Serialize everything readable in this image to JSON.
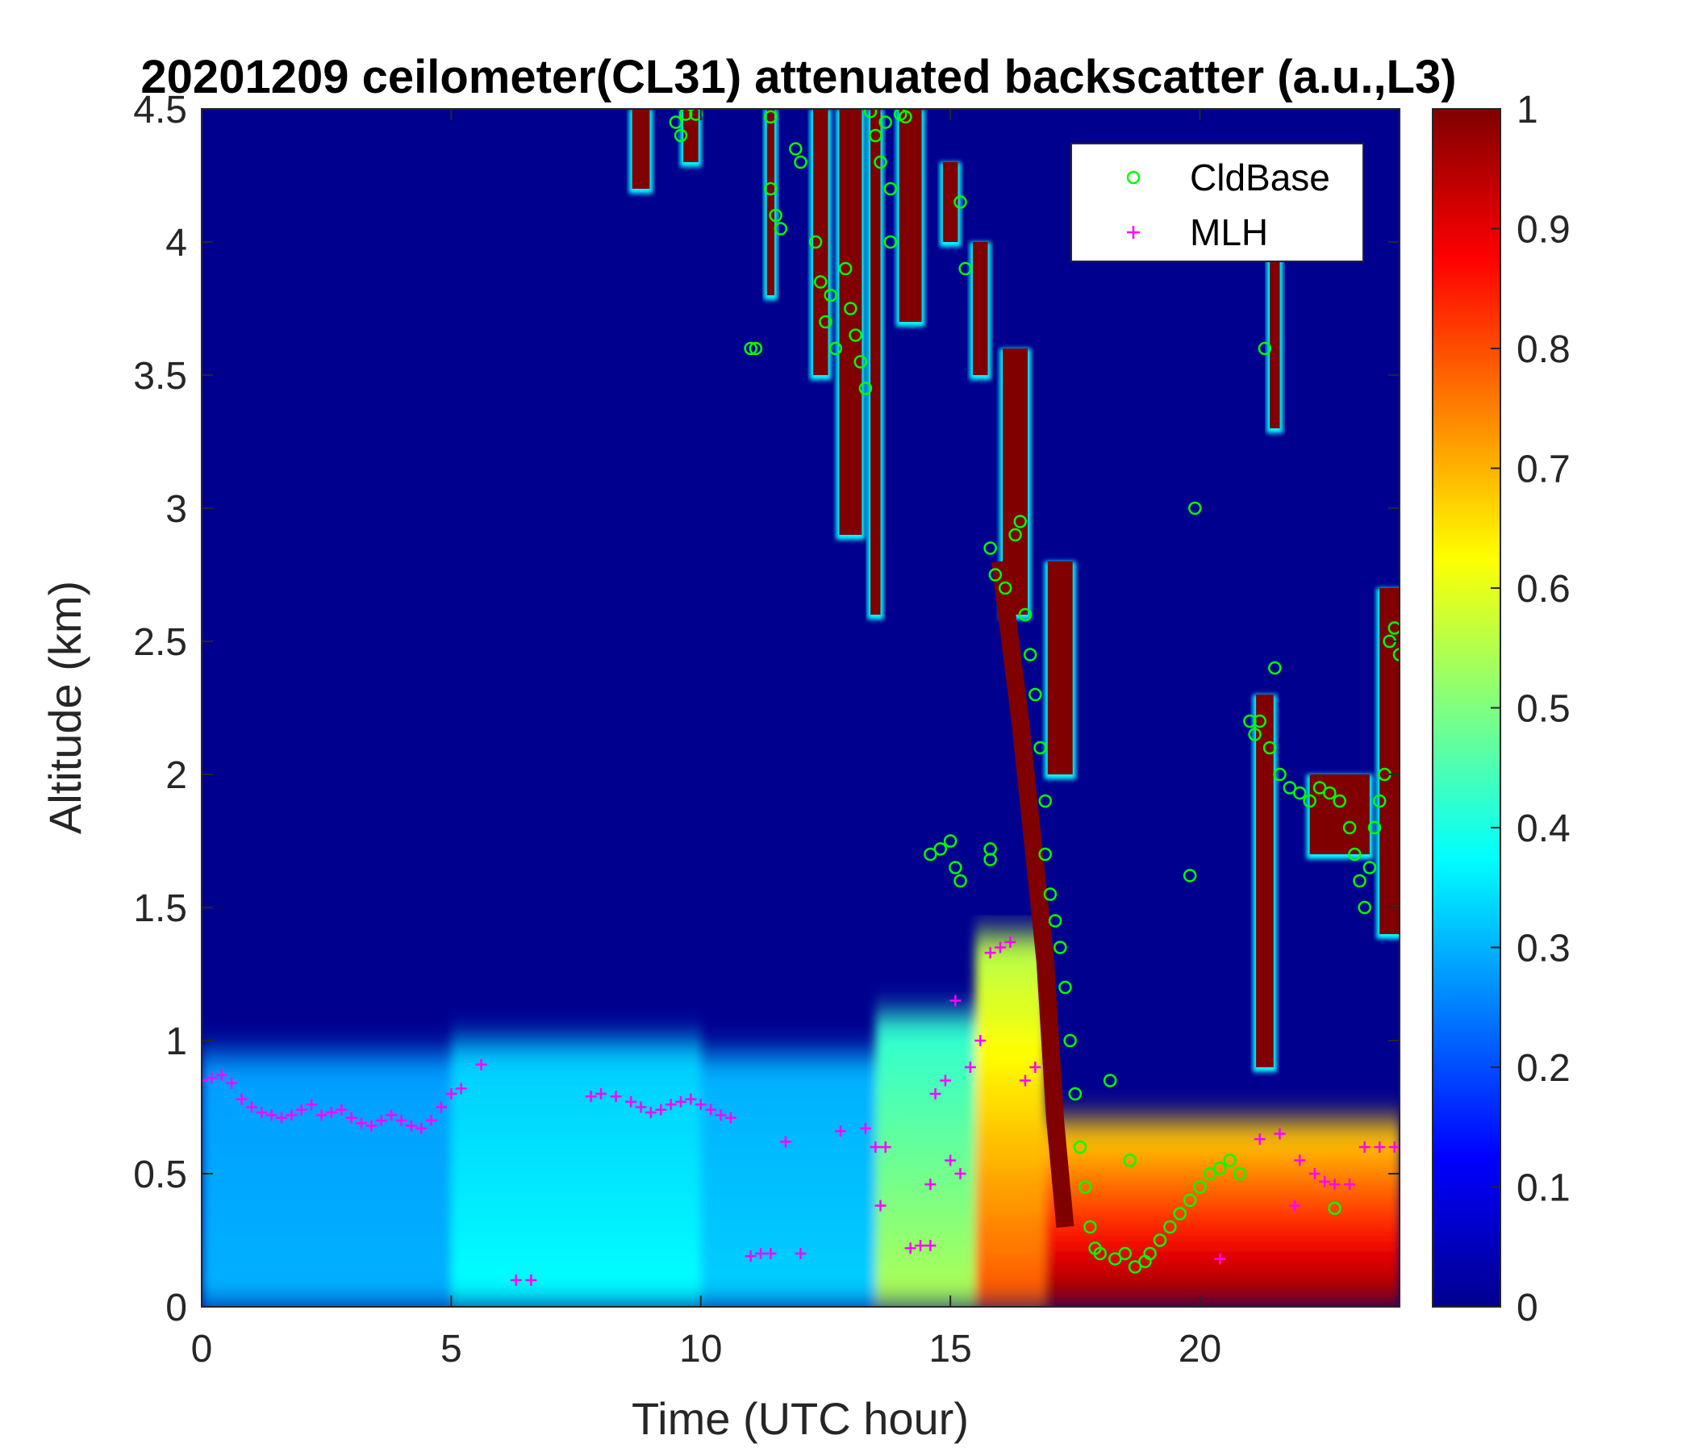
{
  "chart_data": {
    "type": "heatmap",
    "title": "20201209 ceilometer(CL31) attenuated backscatter (a.u.,L3)",
    "xlabel": "Time (UTC hour)",
    "ylabel": "Altitude (km)",
    "xlim": [
      0,
      24
    ],
    "ylim": [
      0,
      4.5
    ],
    "xticks": [
      0,
      5,
      10,
      15,
      20
    ],
    "xtick_labels": [
      "0",
      "5",
      "10",
      "15",
      "20"
    ],
    "yticks": [
      0,
      0.5,
      1,
      1.5,
      2,
      2.5,
      3,
      3.5,
      4,
      4.5
    ],
    "ytick_labels": [
      "0",
      "0.5",
      "1",
      "1.5",
      "2",
      "2.5",
      "3",
      "3.5",
      "4",
      "4.5"
    ],
    "colorbar": {
      "colormap": "jet",
      "range": [
        0,
        1
      ],
      "ticks": [
        0,
        0.1,
        0.2,
        0.3,
        0.4,
        0.5,
        0.6,
        0.7,
        0.8,
        0.9,
        1
      ],
      "tick_labels": [
        "0",
        "0.1",
        "0.2",
        "0.3",
        "0.4",
        "0.5",
        "0.6",
        "0.7",
        "0.8",
        "0.9",
        "1"
      ]
    },
    "legend": {
      "position": "top-right",
      "entries": [
        "CldBase",
        "MLH"
      ]
    },
    "heatmap_features": {
      "boundary_layer": [
        {
          "t0": 0,
          "t1": 5,
          "top": 0.95,
          "value": 0.3
        },
        {
          "t0": 5,
          "t1": 10,
          "top": 1.0,
          "value": 0.38
        },
        {
          "t0": 10,
          "t1": 13.5,
          "top": 0.95,
          "value": 0.33
        },
        {
          "t0": 13.5,
          "t1": 15.5,
          "top": 1.1,
          "value": 0.55
        },
        {
          "t0": 15.5,
          "t1": 16.9,
          "top": 1.4,
          "value": 0.8
        },
        {
          "t0": 16.9,
          "t1": 24,
          "top": 0.7,
          "value": 1.0
        }
      ],
      "cloud_streaks": [
        {
          "t": 8.8,
          "bottom": 4.2,
          "top": 4.5,
          "width": 0.35
        },
        {
          "t": 9.8,
          "bottom": 4.3,
          "top": 4.5,
          "width": 0.3
        },
        {
          "t": 11.4,
          "bottom": 3.8,
          "top": 4.5,
          "width": 0.15
        },
        {
          "t": 12.4,
          "bottom": 3.5,
          "top": 4.5,
          "width": 0.3
        },
        {
          "t": 13.0,
          "bottom": 2.9,
          "top": 4.5,
          "width": 0.45
        },
        {
          "t": 13.5,
          "bottom": 2.6,
          "top": 4.5,
          "width": 0.2
        },
        {
          "t": 14.2,
          "bottom": 3.7,
          "top": 4.5,
          "width": 0.45
        },
        {
          "t": 15.0,
          "bottom": 4.0,
          "top": 4.3,
          "width": 0.3
        },
        {
          "t": 15.6,
          "bottom": 3.5,
          "top": 4.0,
          "width": 0.3
        },
        {
          "t": 16.3,
          "bottom": 2.6,
          "top": 3.6,
          "width": 0.5
        },
        {
          "t": 17.2,
          "bottom": 2.0,
          "top": 2.8,
          "width": 0.5
        },
        {
          "t": 21.3,
          "bottom": 0.9,
          "top": 2.3,
          "width": 0.35
        },
        {
          "t": 21.5,
          "bottom": 3.3,
          "top": 4.0,
          "width": 0.2
        },
        {
          "t": 22.8,
          "bottom": 1.7,
          "top": 2.0,
          "width": 1.2
        },
        {
          "t": 23.8,
          "bottom": 1.4,
          "top": 2.7,
          "width": 0.4
        }
      ],
      "cloud_diagonal": [
        [
          16.0,
          2.8
        ],
        [
          16.4,
          2.2
        ],
        [
          16.9,
          1.3
        ],
        [
          17.1,
          0.7
        ],
        [
          17.3,
          0.3
        ]
      ]
    },
    "series": [
      {
        "name": "CldBase",
        "marker": "circle",
        "color": "#00ff00",
        "points": [
          [
            9.5,
            4.45
          ],
          [
            9.6,
            4.4
          ],
          [
            9.7,
            4.48
          ],
          [
            9.9,
            4.48
          ],
          [
            11.0,
            3.6
          ],
          [
            11.1,
            3.6
          ],
          [
            11.4,
            4.47
          ],
          [
            11.4,
            4.2
          ],
          [
            11.5,
            4.1
          ],
          [
            11.6,
            4.05
          ],
          [
            11.9,
            4.35
          ],
          [
            12.0,
            4.3
          ],
          [
            12.3,
            4.0
          ],
          [
            12.4,
            3.85
          ],
          [
            12.5,
            3.7
          ],
          [
            12.6,
            3.8
          ],
          [
            12.7,
            3.6
          ],
          [
            12.9,
            3.9
          ],
          [
            13.0,
            3.75
          ],
          [
            13.1,
            3.65
          ],
          [
            13.2,
            3.55
          ],
          [
            13.3,
            3.45
          ],
          [
            13.4,
            4.49
          ],
          [
            13.5,
            4.4
          ],
          [
            13.6,
            4.3
          ],
          [
            13.7,
            4.45
          ],
          [
            13.8,
            4.2
          ],
          [
            13.8,
            4.0
          ],
          [
            14.0,
            4.48
          ],
          [
            14.1,
            4.47
          ],
          [
            14.6,
            1.7
          ],
          [
            14.8,
            1.72
          ],
          [
            15.0,
            1.75
          ],
          [
            15.1,
            1.65
          ],
          [
            15.2,
            1.6
          ],
          [
            15.2,
            4.15
          ],
          [
            15.3,
            3.9
          ],
          [
            15.8,
            1.72
          ],
          [
            15.8,
            1.68
          ],
          [
            15.8,
            2.85
          ],
          [
            15.9,
            2.75
          ],
          [
            16.1,
            2.7
          ],
          [
            16.3,
            2.9
          ],
          [
            16.4,
            2.95
          ],
          [
            16.5,
            2.6
          ],
          [
            16.6,
            2.45
          ],
          [
            16.7,
            2.3
          ],
          [
            16.8,
            2.1
          ],
          [
            16.9,
            1.9
          ],
          [
            16.9,
            1.7
          ],
          [
            17.0,
            1.55
          ],
          [
            17.1,
            1.45
          ],
          [
            17.2,
            1.35
          ],
          [
            17.3,
            1.2
          ],
          [
            17.4,
            1.0
          ],
          [
            17.5,
            0.8
          ],
          [
            17.6,
            0.6
          ],
          [
            17.7,
            0.45
          ],
          [
            17.8,
            0.3
          ],
          [
            17.9,
            0.22
          ],
          [
            18.0,
            0.2
          ],
          [
            18.2,
            0.85
          ],
          [
            18.3,
            0.18
          ],
          [
            18.5,
            0.2
          ],
          [
            18.6,
            0.55
          ],
          [
            18.7,
            0.15
          ],
          [
            18.9,
            0.17
          ],
          [
            19.0,
            0.2
          ],
          [
            19.2,
            0.25
          ],
          [
            19.4,
            0.3
          ],
          [
            19.6,
            0.35
          ],
          [
            19.8,
            0.4
          ],
          [
            19.8,
            1.62
          ],
          [
            19.9,
            3.0
          ],
          [
            20.0,
            0.45
          ],
          [
            20.2,
            0.5
          ],
          [
            20.4,
            0.52
          ],
          [
            20.6,
            0.55
          ],
          [
            20.8,
            0.5
          ],
          [
            21.0,
            2.2
          ],
          [
            21.1,
            2.15
          ],
          [
            21.2,
            2.2
          ],
          [
            21.3,
            3.6
          ],
          [
            21.4,
            2.1
          ],
          [
            21.5,
            2.4
          ],
          [
            21.6,
            2.0
          ],
          [
            21.8,
            1.95
          ],
          [
            22.0,
            1.93
          ],
          [
            22.2,
            1.9
          ],
          [
            22.4,
            1.95
          ],
          [
            22.6,
            1.93
          ],
          [
            22.8,
            1.9
          ],
          [
            23.0,
            1.8
          ],
          [
            23.1,
            1.7
          ],
          [
            23.2,
            1.6
          ],
          [
            23.3,
            1.5
          ],
          [
            23.4,
            1.65
          ],
          [
            23.5,
            1.8
          ],
          [
            23.6,
            1.9
          ],
          [
            23.7,
            2.0
          ],
          [
            23.8,
            2.5
          ],
          [
            23.9,
            2.55
          ],
          [
            24.0,
            2.45
          ],
          [
            22.7,
            0.37
          ]
        ]
      },
      {
        "name": "MLH",
        "marker": "plus",
        "color": "#ff00ff",
        "points": [
          [
            0.0,
            0.85
          ],
          [
            0.2,
            0.86
          ],
          [
            0.4,
            0.87
          ],
          [
            0.6,
            0.84
          ],
          [
            0.8,
            0.78
          ],
          [
            1.0,
            0.75
          ],
          [
            1.2,
            0.73
          ],
          [
            1.4,
            0.72
          ],
          [
            1.6,
            0.71
          ],
          [
            1.8,
            0.72
          ],
          [
            2.0,
            0.74
          ],
          [
            2.2,
            0.76
          ],
          [
            2.4,
            0.72
          ],
          [
            2.6,
            0.73
          ],
          [
            2.8,
            0.74
          ],
          [
            3.0,
            0.71
          ],
          [
            3.2,
            0.69
          ],
          [
            3.4,
            0.68
          ],
          [
            3.6,
            0.7
          ],
          [
            3.8,
            0.72
          ],
          [
            4.0,
            0.7
          ],
          [
            4.2,
            0.68
          ],
          [
            4.4,
            0.67
          ],
          [
            4.6,
            0.7
          ],
          [
            4.8,
            0.75
          ],
          [
            5.0,
            0.8
          ],
          [
            5.2,
            0.82
          ],
          [
            5.6,
            0.91
          ],
          [
            6.3,
            0.1
          ],
          [
            6.6,
            0.1
          ],
          [
            7.8,
            0.79
          ],
          [
            8.0,
            0.8
          ],
          [
            8.3,
            0.79
          ],
          [
            8.6,
            0.77
          ],
          [
            8.8,
            0.75
          ],
          [
            9.0,
            0.73
          ],
          [
            9.2,
            0.74
          ],
          [
            9.4,
            0.76
          ],
          [
            9.6,
            0.77
          ],
          [
            9.8,
            0.78
          ],
          [
            10.0,
            0.76
          ],
          [
            10.2,
            0.74
          ],
          [
            10.4,
            0.72
          ],
          [
            10.6,
            0.71
          ],
          [
            11.0,
            0.19
          ],
          [
            11.2,
            0.2
          ],
          [
            11.4,
            0.2
          ],
          [
            11.7,
            0.62
          ],
          [
            12.0,
            0.2
          ],
          [
            12.8,
            0.66
          ],
          [
            13.3,
            0.67
          ],
          [
            13.5,
            0.6
          ],
          [
            13.7,
            0.6
          ],
          [
            13.6,
            0.38
          ],
          [
            14.2,
            0.22
          ],
          [
            14.4,
            0.23
          ],
          [
            14.6,
            0.23
          ],
          [
            14.6,
            0.46
          ],
          [
            14.7,
            0.8
          ],
          [
            14.9,
            0.85
          ],
          [
            15.0,
            0.55
          ],
          [
            15.1,
            1.15
          ],
          [
            15.2,
            0.5
          ],
          [
            15.4,
            0.9
          ],
          [
            15.6,
            1.0
          ],
          [
            15.8,
            1.33
          ],
          [
            16.0,
            1.35
          ],
          [
            16.2,
            1.37
          ],
          [
            16.5,
            0.85
          ],
          [
            16.7,
            0.9
          ],
          [
            20.4,
            0.18
          ],
          [
            21.2,
            0.63
          ],
          [
            21.6,
            0.65
          ],
          [
            22.0,
            0.55
          ],
          [
            22.3,
            0.5
          ],
          [
            22.5,
            0.47
          ],
          [
            22.7,
            0.46
          ],
          [
            23.0,
            0.46
          ],
          [
            23.3,
            0.6
          ],
          [
            23.6,
            0.6
          ],
          [
            23.9,
            0.6
          ],
          [
            21.9,
            0.38
          ]
        ]
      }
    ]
  }
}
